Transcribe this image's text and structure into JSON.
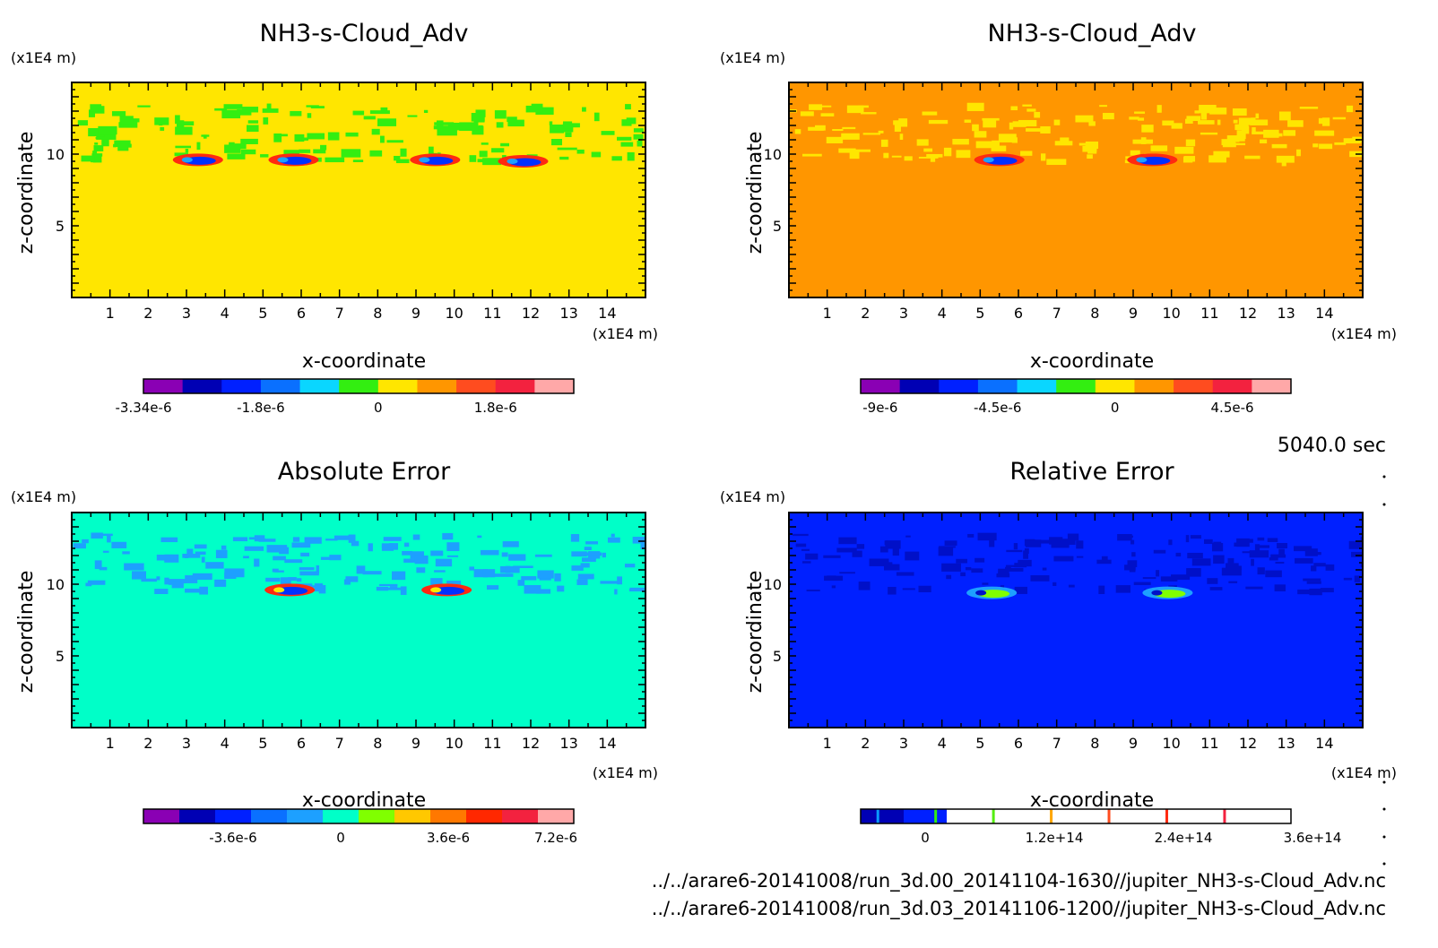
{
  "figure": {
    "time_label": "5040.0 sec",
    "file_paths": [
      "../../arare6-20141008/run_3d.00_20141104-1630//jupiter_NH3-s-Cloud_Adv.nc",
      "../../arare6-20141008/run_3d.03_20141106-1200//jupiter_NH3-s-Cloud_Adv.nc"
    ]
  },
  "chart_data": [
    {
      "type": "heatmap",
      "title": "NH3-s-Cloud_Adv",
      "xlabel": "x-coordinate",
      "ylabel": "z-coordinate",
      "x_unit": "(x1E4 m)",
      "y_unit": "(x1E4 m)",
      "xlim": [
        0,
        15
      ],
      "ylim": [
        0,
        15
      ],
      "x_ticks": [
        "1",
        "2",
        "3",
        "4",
        "5",
        "6",
        "7",
        "8",
        "9",
        "10",
        "11",
        "12",
        "13",
        "14"
      ],
      "y_ticks": [
        "5",
        "10"
      ],
      "background_color": "#ffe600",
      "layer_color": "#33ee11",
      "features": [
        {
          "x": 3.3,
          "z": 9.6,
          "colors": [
            "#ff2a10",
            "#0030ff",
            "#1da0ff"
          ]
        },
        {
          "x": 5.8,
          "z": 9.6,
          "colors": [
            "#ff2a10",
            "#0030ff",
            "#1da0ff"
          ]
        },
        {
          "x": 9.5,
          "z": 9.6,
          "colors": [
            "#ff2a10",
            "#0030ff",
            "#1da0ff"
          ]
        },
        {
          "x": 11.8,
          "z": 9.5,
          "colors": [
            "#ff2a10",
            "#0030ff",
            "#1da0ff"
          ]
        }
      ],
      "colorbar": {
        "colors": [
          "#8a00b4",
          "#0000b4",
          "#0020ff",
          "#0a70ff",
          "#0ad6ff",
          "#33ee11",
          "#ffe600",
          "#ff9600",
          "#ff4c1f",
          "#f3223f",
          "#ffa8a8"
        ],
        "ticks": [
          "-3.34e-6",
          "-1.8e-6",
          "0",
          "1.8e-6"
        ],
        "tick_positions": [
          0,
          3,
          6,
          9
        ]
      }
    },
    {
      "type": "heatmap",
      "title": "NH3-s-Cloud_Adv",
      "xlabel": "x-coordinate",
      "ylabel": "z-coordinate",
      "x_unit": "(x1E4 m)",
      "y_unit": "(x1E4 m)",
      "xlim": [
        0,
        15
      ],
      "ylim": [
        0,
        15
      ],
      "x_ticks": [
        "1",
        "2",
        "3",
        "4",
        "5",
        "6",
        "7",
        "8",
        "9",
        "10",
        "11",
        "12",
        "13",
        "14"
      ],
      "y_ticks": [
        "5",
        "10"
      ],
      "background_color": "#ff9600",
      "layer_color": "#ffe600",
      "features": [
        {
          "x": 5.5,
          "z": 9.6,
          "colors": [
            "#ff2a10",
            "#0030ff",
            "#1da0ff"
          ]
        },
        {
          "x": 9.5,
          "z": 9.6,
          "colors": [
            "#ff2a10",
            "#0030ff",
            "#1da0ff"
          ]
        }
      ],
      "colorbar": {
        "colors": [
          "#8a00b4",
          "#0000b4",
          "#0020ff",
          "#0a70ff",
          "#0ad6ff",
          "#33ee11",
          "#ffe600",
          "#ff9600",
          "#ff4c1f",
          "#f3223f",
          "#ffa8a8"
        ],
        "ticks": [
          "-9e-6",
          "-4.5e-6",
          "0",
          "4.5e-6"
        ],
        "tick_positions": [
          0.5,
          3.5,
          6.5,
          9.5
        ]
      }
    },
    {
      "type": "heatmap",
      "title": "Absolute Error",
      "xlabel": "x-coordinate",
      "ylabel": "z-coordinate",
      "x_unit": "(x1E4 m)",
      "y_unit": "(x1E4 m)",
      "xlim": [
        0,
        15
      ],
      "ylim": [
        0,
        15
      ],
      "x_ticks": [
        "1",
        "2",
        "3",
        "4",
        "5",
        "6",
        "7",
        "8",
        "9",
        "10",
        "11",
        "12",
        "13",
        "14"
      ],
      "y_ticks": [
        "5",
        "10"
      ],
      "background_color": "#00ffc8",
      "layer_color": "#1da0ff",
      "features": [
        {
          "x": 5.7,
          "z": 9.6,
          "colors": [
            "#ff2a10",
            "#0030ff",
            "#ffe600"
          ]
        },
        {
          "x": 9.8,
          "z": 9.6,
          "colors": [
            "#ff2a10",
            "#0030ff",
            "#ffe600"
          ]
        }
      ],
      "colorbar": {
        "colors": [
          "#8a00b4",
          "#0000b4",
          "#0020ff",
          "#0a70ff",
          "#1da0ff",
          "#00ffc8",
          "#80ff00",
          "#ffc800",
          "#ff7800",
          "#ff2800",
          "#f3223f",
          "#ffa8a8"
        ],
        "ticks": [
          "-3.6e-6",
          "0",
          "3.6e-6",
          "7.2e-6"
        ],
        "tick_positions": [
          2.5,
          5.5,
          8.5,
          11.5
        ]
      }
    },
    {
      "type": "heatmap",
      "title": "Relative Error",
      "xlabel": "x-coordinate",
      "ylabel": "z-coordinate",
      "x_unit": "(x1E4 m)",
      "y_unit": "(x1E4 m)",
      "xlim": [
        0,
        15
      ],
      "ylim": [
        0,
        15
      ],
      "x_ticks": [
        "1",
        "2",
        "3",
        "4",
        "5",
        "6",
        "7",
        "8",
        "9",
        "10",
        "11",
        "12",
        "13",
        "14"
      ],
      "y_ticks": [
        "5",
        "10"
      ],
      "background_color": "#0020ff",
      "layer_color": "#0010c8",
      "features": [
        {
          "x": 5.3,
          "z": 9.4,
          "colors": [
            "#1da0ff",
            "#80ff00",
            "#0010c8"
          ]
        },
        {
          "x": 9.9,
          "z": 9.4,
          "colors": [
            "#1da0ff",
            "#80ff00",
            "#0010c8"
          ]
        }
      ],
      "colorbar": {
        "colors": [
          "#0000b4",
          "#0020ff",
          "#ffffff",
          "#ffffff",
          "#ffffff",
          "#ffffff",
          "#ffffff",
          "#ffffff",
          "#ffffff",
          "#ffffff"
        ],
        "ticks": [
          "0",
          "1.2e+14",
          "2.4e+14",
          "3.6e+14"
        ],
        "tick_positions": [
          1.5,
          4.5,
          7.5,
          10.5
        ],
        "line_colors": [
          "#0a9bff",
          "#33ee11",
          "#55ee11",
          "#ffa600",
          "#ff4c1f",
          "#ff2a10",
          "#f3223f"
        ]
      }
    }
  ]
}
